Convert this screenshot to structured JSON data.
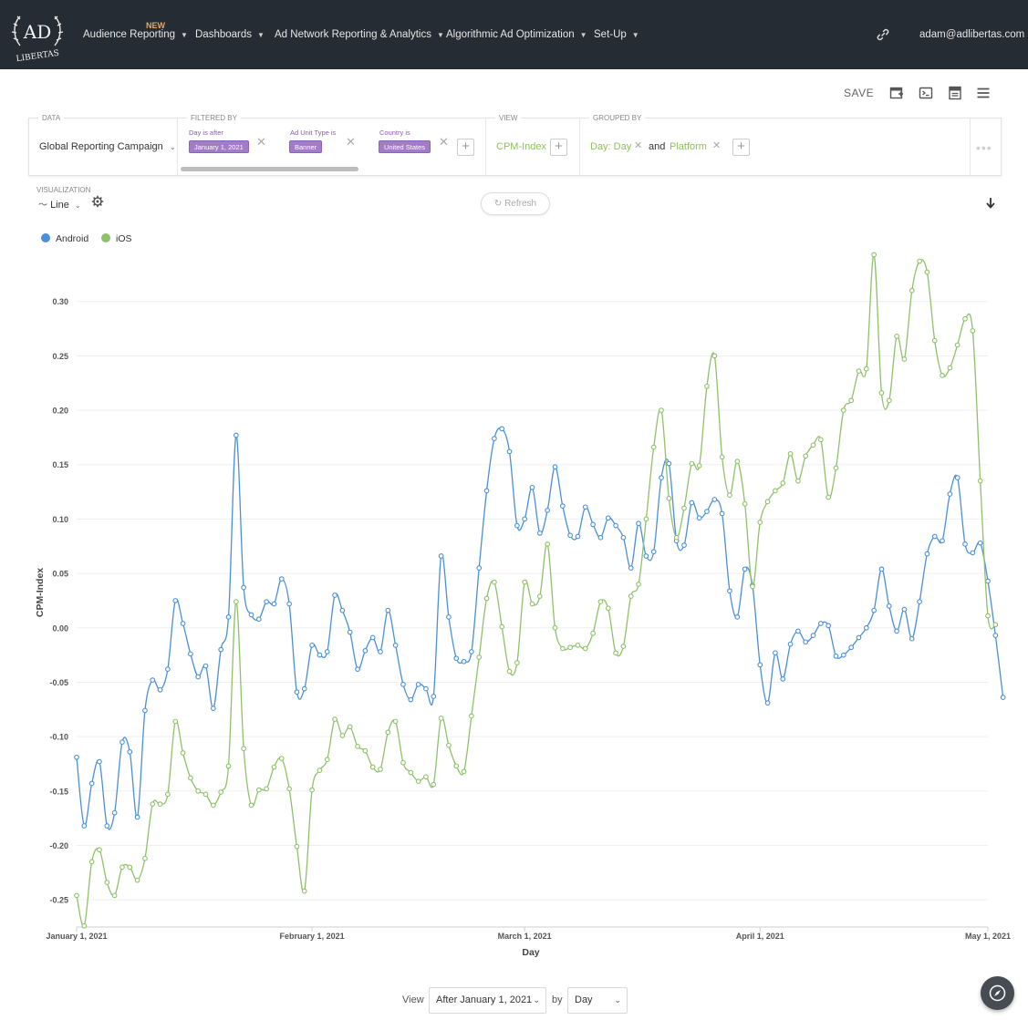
{
  "nav": {
    "logo_text_top": "AD",
    "logo_text_bottom": "LIBERTAS",
    "items": [
      {
        "label": "Audience Reporting"
      },
      {
        "label": "Dashboards"
      },
      {
        "label": "Ad Network Reporting & Analytics"
      },
      {
        "label": "Algorithmic Ad Optimization"
      },
      {
        "label": "Set-Up"
      }
    ],
    "new_badge": "NEW",
    "link_icon": "link-icon",
    "user": "adam@adlibertas.com"
  },
  "toolbar": {
    "save_label": "SAVE",
    "icons": [
      "add-dashboard-icon",
      "embed-icon",
      "report-icon",
      "menu-icon"
    ]
  },
  "query": {
    "data_label": "DATA",
    "data_value": "Global Reporting Campaign",
    "filtered_label": "FILTERED BY",
    "filters": [
      {
        "label": "Day is after",
        "value": "January 1, 2021"
      },
      {
        "label": "Ad Unit Type is",
        "value": "Banner"
      },
      {
        "label": "Country is",
        "value": "United States"
      }
    ],
    "view_label": "VIEW",
    "view_value": "CPM-Index",
    "grouped_label": "GROUPED BY",
    "group1": "Day: Day",
    "group_and": "and",
    "group2": "Platform"
  },
  "visualization": {
    "label": "VISUALIZATION",
    "type": "Line",
    "refresh_label": "Refresh"
  },
  "colors": {
    "android": "#4a90d9",
    "ios": "#8fc16b",
    "accent_purple": "#a27cc7",
    "nav_bg": "#252c33"
  },
  "chart_data": {
    "type": "line",
    "xlabel": "Day",
    "ylabel": "CPM-Index",
    "ylim": [
      -0.275,
      0.345
    ],
    "yticks": [
      "-0.25",
      "-0.20",
      "-0.15",
      "-0.10",
      "-0.05",
      "0.00",
      "0.05",
      "0.10",
      "0.15",
      "0.20",
      "0.25",
      "0.30"
    ],
    "xticks": [
      "January 1, 2021",
      "February 1, 2021",
      "March 1, 2021",
      "April 1, 2021",
      "May 1, 2021"
    ],
    "x_start": "2021-01-01",
    "x_end": "2021-05-01",
    "legend_position": "top-left",
    "grid": true,
    "series": [
      {
        "name": "Android",
        "values": [
          -0.119,
          -0.182,
          -0.143,
          -0.123,
          -0.182,
          -0.17,
          -0.105,
          -0.114,
          -0.174,
          -0.076,
          -0.048,
          -0.057,
          -0.038,
          0.025,
          0.004,
          -0.024,
          -0.045,
          -0.035,
          -0.074,
          -0.02,
          0.01,
          0.177,
          0.037,
          0.012,
          0.008,
          0.024,
          0.022,
          0.045,
          0.022,
          -0.059,
          -0.056,
          -0.016,
          -0.025,
          -0.022,
          0.03,
          0.016,
          -0.004,
          -0.038,
          -0.021,
          -0.009,
          -0.022,
          0.016,
          -0.016,
          -0.052,
          -0.066,
          -0.052,
          -0.056,
          -0.063,
          0.066,
          0.01,
          -0.028,
          -0.031,
          -0.022,
          0.055,
          0.126,
          0.174,
          0.183,
          0.162,
          0.094,
          0.1,
          0.129,
          0.087,
          0.108,
          0.148,
          0.112,
          0.085,
          0.084,
          0.111,
          0.095,
          0.083,
          0.101,
          0.094,
          0.083,
          0.055,
          0.096,
          0.066,
          0.07,
          0.138,
          0.151,
          0.08,
          0.076,
          0.115,
          0.101,
          0.107,
          0.118,
          0.105,
          0.034,
          0.01,
          0.054,
          0.039,
          -0.034,
          -0.069,
          -0.023,
          -0.047,
          -0.015,
          -0.003,
          -0.013,
          -0.007,
          0.004,
          0.002,
          -0.026,
          -0.025,
          -0.018,
          -0.009,
          0.0,
          0.016,
          0.054,
          0.02,
          -0.003,
          0.017,
          -0.01,
          0.024,
          0.068,
          0.084,
          0.08,
          0.123,
          0.138,
          0.077,
          0.069,
          0.078,
          0.043,
          -0.007,
          -0.064
        ]
      },
      {
        "name": "iOS",
        "values": [
          -0.246,
          -0.274,
          -0.215,
          -0.204,
          -0.234,
          -0.246,
          -0.22,
          -0.22,
          -0.232,
          -0.212,
          -0.162,
          -0.162,
          -0.153,
          -0.086,
          -0.115,
          -0.138,
          -0.15,
          -0.153,
          -0.163,
          -0.151,
          -0.127,
          0.024,
          -0.111,
          -0.163,
          -0.149,
          -0.148,
          -0.128,
          -0.12,
          -0.148,
          -0.201,
          -0.242,
          -0.149,
          -0.131,
          -0.121,
          -0.084,
          -0.099,
          -0.091,
          -0.109,
          -0.113,
          -0.128,
          -0.13,
          -0.096,
          -0.086,
          -0.124,
          -0.133,
          -0.141,
          -0.137,
          -0.144,
          -0.083,
          -0.108,
          -0.127,
          -0.132,
          -0.081,
          -0.027,
          0.027,
          0.042,
          0.001,
          -0.04,
          -0.032,
          0.042,
          0.022,
          0.029,
          0.077,
          0.0,
          -0.019,
          -0.018,
          -0.016,
          -0.019,
          -0.005,
          0.024,
          0.018,
          -0.023,
          -0.017,
          0.029,
          0.04,
          0.1,
          0.166,
          0.2,
          0.119,
          0.083,
          0.11,
          0.151,
          0.149,
          0.222,
          0.25,
          0.157,
          0.122,
          0.153,
          0.114,
          0.038,
          0.097,
          0.116,
          0.126,
          0.133,
          0.16,
          0.135,
          0.158,
          0.168,
          0.173,
          0.12,
          0.147,
          0.2,
          0.209,
          0.236,
          0.238,
          0.343,
          0.216,
          0.209,
          0.268,
          0.247,
          0.31,
          0.337,
          0.327,
          0.264,
          0.232,
          0.239,
          0.26,
          0.284,
          0.273,
          0.135,
          0.011,
          0.003
        ]
      }
    ]
  },
  "footer": {
    "view_label": "View",
    "range_value": "After January 1, 2021",
    "by_label": "by",
    "granularity_value": "Day"
  }
}
